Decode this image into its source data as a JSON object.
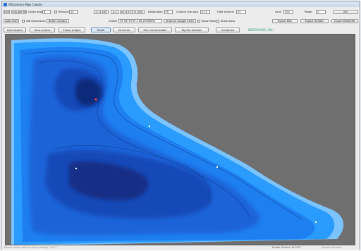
{
  "window": {
    "title": "ISOcontour Map Creator"
  },
  "toolbar_row1": {
    "exit": "Exit",
    "evaluate_file": "Evaluate file",
    "graph_depth_label": "Graph depth",
    "graph_depth_value": "8",
    "reduce_label": "Reduce to",
    "reduce_value": "10",
    "zoom_buttons": [
      "-1",
      "x50",
      "x-1",
      "x0",
      "x+5",
      "x50"
    ],
    "destination_label": "Destination",
    "destination_value": "FE",
    "contour_step_label": "Contour line step",
    "contour_step_value": "0.25",
    "filter_interval_label": "Filter interval",
    "filter_interval_value": "25",
    "limit_label": "Limit",
    "limit_value": "300",
    "power_label": "Power",
    "power_value": "2",
    "set": "Set"
  },
  "toolbar_row2": {
    "add_lowi": "Add LOWI",
    "with_downscan": "with DownScan",
    "better_contour": "Better contour",
    "center_label": "Center",
    "center_value": "39.547197N  -106.224685W",
    "show_google_earth": "Show on Google Earth",
    "show_track": "Show Track",
    "show_icons": "Show Icons",
    "export_kml": "Export KML",
    "export_gz_kml": "Export GZ/KML",
    "export_kmz": "Export KMZ/KML"
  },
  "toolbar_row3": {
    "load_project": "Load project",
    "save_project": "Save project",
    "empty_project": "Empty project",
    "tabs": [
      "Depth",
      "Structure",
      "Fish concentration",
      "Big fish location",
      "Combined"
    ],
    "status": "KOZ/SAVING: (Ok)"
  },
  "statusbar": {
    "left": "Mouse wheel used to change scaling, 1 to 1",
    "middle": "Ecodip Studios Ltd 2017",
    "right": "Explorer Bounds"
  },
  "colors": {
    "background": "#6f6f6f",
    "shallow": "#1e90ff",
    "mid": "#1f5fd6",
    "deep": "#0e2a7a",
    "edge": "#a8d6ff",
    "status_ok": "#1d9b6d"
  }
}
